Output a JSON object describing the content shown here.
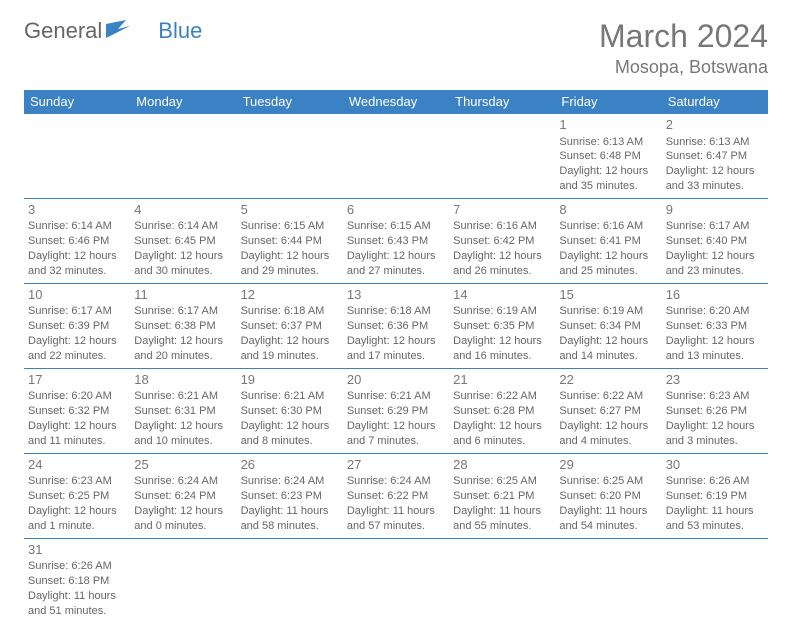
{
  "logo": {
    "general": "General",
    "blue": "Blue"
  },
  "title": "March 2024",
  "location": "Mosopa, Botswana",
  "weekday_headers": [
    "Sunday",
    "Monday",
    "Tuesday",
    "Wednesday",
    "Thursday",
    "Friday",
    "Saturday"
  ],
  "header_bg": "#3b82c4",
  "header_fg": "#ffffff",
  "border_color": "#3b82c4",
  "text_color": "#666666",
  "title_color": "#777777",
  "cell_fontsize": 11,
  "header_fontsize": 13,
  "title_fontsize": 32,
  "location_fontsize": 18,
  "weeks": [
    [
      null,
      null,
      null,
      null,
      null,
      {
        "day": "1",
        "sunrise": "Sunrise: 6:13 AM",
        "sunset": "Sunset: 6:48 PM",
        "daylight": "Daylight: 12 hours and 35 minutes."
      },
      {
        "day": "2",
        "sunrise": "Sunrise: 6:13 AM",
        "sunset": "Sunset: 6:47 PM",
        "daylight": "Daylight: 12 hours and 33 minutes."
      }
    ],
    [
      {
        "day": "3",
        "sunrise": "Sunrise: 6:14 AM",
        "sunset": "Sunset: 6:46 PM",
        "daylight": "Daylight: 12 hours and 32 minutes."
      },
      {
        "day": "4",
        "sunrise": "Sunrise: 6:14 AM",
        "sunset": "Sunset: 6:45 PM",
        "daylight": "Daylight: 12 hours and 30 minutes."
      },
      {
        "day": "5",
        "sunrise": "Sunrise: 6:15 AM",
        "sunset": "Sunset: 6:44 PM",
        "daylight": "Daylight: 12 hours and 29 minutes."
      },
      {
        "day": "6",
        "sunrise": "Sunrise: 6:15 AM",
        "sunset": "Sunset: 6:43 PM",
        "daylight": "Daylight: 12 hours and 27 minutes."
      },
      {
        "day": "7",
        "sunrise": "Sunrise: 6:16 AM",
        "sunset": "Sunset: 6:42 PM",
        "daylight": "Daylight: 12 hours and 26 minutes."
      },
      {
        "day": "8",
        "sunrise": "Sunrise: 6:16 AM",
        "sunset": "Sunset: 6:41 PM",
        "daylight": "Daylight: 12 hours and 25 minutes."
      },
      {
        "day": "9",
        "sunrise": "Sunrise: 6:17 AM",
        "sunset": "Sunset: 6:40 PM",
        "daylight": "Daylight: 12 hours and 23 minutes."
      }
    ],
    [
      {
        "day": "10",
        "sunrise": "Sunrise: 6:17 AM",
        "sunset": "Sunset: 6:39 PM",
        "daylight": "Daylight: 12 hours and 22 minutes."
      },
      {
        "day": "11",
        "sunrise": "Sunrise: 6:17 AM",
        "sunset": "Sunset: 6:38 PM",
        "daylight": "Daylight: 12 hours and 20 minutes."
      },
      {
        "day": "12",
        "sunrise": "Sunrise: 6:18 AM",
        "sunset": "Sunset: 6:37 PM",
        "daylight": "Daylight: 12 hours and 19 minutes."
      },
      {
        "day": "13",
        "sunrise": "Sunrise: 6:18 AM",
        "sunset": "Sunset: 6:36 PM",
        "daylight": "Daylight: 12 hours and 17 minutes."
      },
      {
        "day": "14",
        "sunrise": "Sunrise: 6:19 AM",
        "sunset": "Sunset: 6:35 PM",
        "daylight": "Daylight: 12 hours and 16 minutes."
      },
      {
        "day": "15",
        "sunrise": "Sunrise: 6:19 AM",
        "sunset": "Sunset: 6:34 PM",
        "daylight": "Daylight: 12 hours and 14 minutes."
      },
      {
        "day": "16",
        "sunrise": "Sunrise: 6:20 AM",
        "sunset": "Sunset: 6:33 PM",
        "daylight": "Daylight: 12 hours and 13 minutes."
      }
    ],
    [
      {
        "day": "17",
        "sunrise": "Sunrise: 6:20 AM",
        "sunset": "Sunset: 6:32 PM",
        "daylight": "Daylight: 12 hours and 11 minutes."
      },
      {
        "day": "18",
        "sunrise": "Sunrise: 6:21 AM",
        "sunset": "Sunset: 6:31 PM",
        "daylight": "Daylight: 12 hours and 10 minutes."
      },
      {
        "day": "19",
        "sunrise": "Sunrise: 6:21 AM",
        "sunset": "Sunset: 6:30 PM",
        "daylight": "Daylight: 12 hours and 8 minutes."
      },
      {
        "day": "20",
        "sunrise": "Sunrise: 6:21 AM",
        "sunset": "Sunset: 6:29 PM",
        "daylight": "Daylight: 12 hours and 7 minutes."
      },
      {
        "day": "21",
        "sunrise": "Sunrise: 6:22 AM",
        "sunset": "Sunset: 6:28 PM",
        "daylight": "Daylight: 12 hours and 6 minutes."
      },
      {
        "day": "22",
        "sunrise": "Sunrise: 6:22 AM",
        "sunset": "Sunset: 6:27 PM",
        "daylight": "Daylight: 12 hours and 4 minutes."
      },
      {
        "day": "23",
        "sunrise": "Sunrise: 6:23 AM",
        "sunset": "Sunset: 6:26 PM",
        "daylight": "Daylight: 12 hours and 3 minutes."
      }
    ],
    [
      {
        "day": "24",
        "sunrise": "Sunrise: 6:23 AM",
        "sunset": "Sunset: 6:25 PM",
        "daylight": "Daylight: 12 hours and 1 minute."
      },
      {
        "day": "25",
        "sunrise": "Sunrise: 6:24 AM",
        "sunset": "Sunset: 6:24 PM",
        "daylight": "Daylight: 12 hours and 0 minutes."
      },
      {
        "day": "26",
        "sunrise": "Sunrise: 6:24 AM",
        "sunset": "Sunset: 6:23 PM",
        "daylight": "Daylight: 11 hours and 58 minutes."
      },
      {
        "day": "27",
        "sunrise": "Sunrise: 6:24 AM",
        "sunset": "Sunset: 6:22 PM",
        "daylight": "Daylight: 11 hours and 57 minutes."
      },
      {
        "day": "28",
        "sunrise": "Sunrise: 6:25 AM",
        "sunset": "Sunset: 6:21 PM",
        "daylight": "Daylight: 11 hours and 55 minutes."
      },
      {
        "day": "29",
        "sunrise": "Sunrise: 6:25 AM",
        "sunset": "Sunset: 6:20 PM",
        "daylight": "Daylight: 11 hours and 54 minutes."
      },
      {
        "day": "30",
        "sunrise": "Sunrise: 6:26 AM",
        "sunset": "Sunset: 6:19 PM",
        "daylight": "Daylight: 11 hours and 53 minutes."
      }
    ],
    [
      {
        "day": "31",
        "sunrise": "Sunrise: 6:26 AM",
        "sunset": "Sunset: 6:18 PM",
        "daylight": "Daylight: 11 hours and 51 minutes."
      },
      null,
      null,
      null,
      null,
      null,
      null
    ]
  ]
}
